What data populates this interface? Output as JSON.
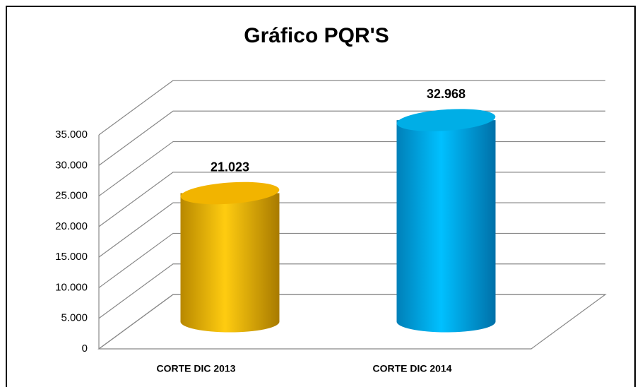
{
  "chart_data": {
    "type": "cylinder",
    "title": "Gráfico PQR'S",
    "categories": [
      "CORTE DIC 2013",
      "CORTE DIC 2014"
    ],
    "values": [
      21023,
      32968
    ],
    "value_labels": [
      "21.023",
      "32.968"
    ],
    "colors": [
      "#f2b400",
      "#00aee6"
    ],
    "ylim": [
      0,
      35000
    ],
    "yticks": [
      0,
      {
        "value": 5000,
        "label": "5.000"
      },
      {
        "value": 10000,
        "label": "10.000"
      },
      {
        "value": 15000,
        "label": "15.000"
      },
      {
        "value": 20000,
        "label": "20.000"
      },
      {
        "value": 25000,
        "label": "25.000"
      },
      {
        "value": 30000,
        "label": "30.000"
      },
      {
        "value": 35000,
        "label": "35.000"
      }
    ],
    "grid": true
  }
}
